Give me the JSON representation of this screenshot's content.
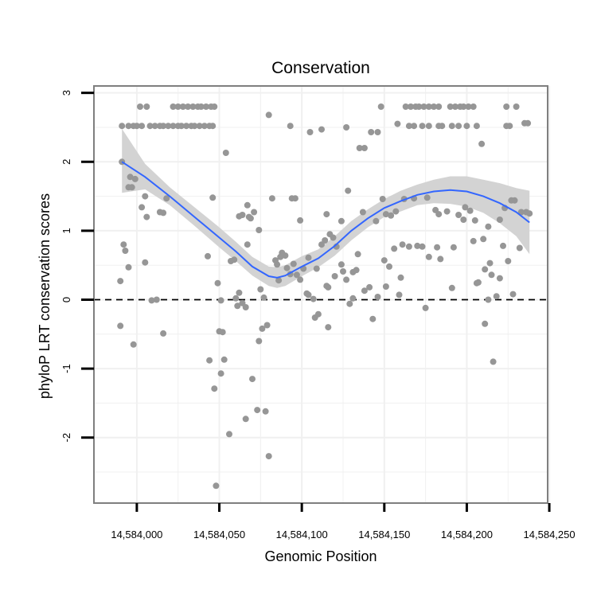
{
  "chart_data": {
    "type": "scatter",
    "title": "Conservation",
    "xlabel": "Genomic Position",
    "ylabel": "phyloP LRT conservation scores",
    "xlim": [
      14583974,
      14584249
    ],
    "ylim": [
      -2.95,
      3.1
    ],
    "x_ticks": [
      14584000,
      14584050,
      14584100,
      14584150,
      14584200,
      14584250
    ],
    "x_tick_labels": [
      "14,584,000",
      "14,584,050",
      "14,584,100",
      "14,584,150",
      "14,584,200",
      "14,584,250"
    ],
    "y_ticks": [
      -2,
      -1,
      0,
      1,
      2,
      3
    ],
    "y_tick_labels": [
      "-2",
      "-1",
      "0",
      "1",
      "2",
      "3"
    ],
    "reference_line": {
      "y": 0,
      "style": "dashed"
    },
    "grid": true,
    "colors": {
      "points": "#969696",
      "smooth": "#3366ff",
      "ribbon": "#d3d3d3",
      "grid": "#f0f0f0",
      "frame": "#7f7f7f",
      "ref": "#000000"
    },
    "points": [
      [
        14583991,
        2.52
      ],
      [
        14583995,
        2.52
      ],
      [
        14583998,
        2.52
      ],
      [
        14584000,
        2.52
      ],
      [
        14584003,
        2.52
      ],
      [
        14584008,
        2.52
      ],
      [
        14584011,
        2.52
      ],
      [
        14584014,
        2.52
      ],
      [
        14584016,
        2.52
      ],
      [
        14584019,
        2.52
      ],
      [
        14584022,
        2.52
      ],
      [
        14584025,
        2.52
      ],
      [
        14584027,
        2.52
      ],
      [
        14584030,
        2.52
      ],
      [
        14584033,
        2.52
      ],
      [
        14584035,
        2.52
      ],
      [
        14584038,
        2.52
      ],
      [
        14584041,
        2.52
      ],
      [
        14584044,
        2.52
      ],
      [
        14584046,
        2.52
      ],
      [
        14584002,
        2.8
      ],
      [
        14584006,
        2.8
      ],
      [
        14584022,
        2.8
      ],
      [
        14584025,
        2.8
      ],
      [
        14584028,
        2.8
      ],
      [
        14584031,
        2.8
      ],
      [
        14584034,
        2.8
      ],
      [
        14584037,
        2.8
      ],
      [
        14584039,
        2.8
      ],
      [
        14584042,
        2.8
      ],
      [
        14584045,
        2.8
      ],
      [
        14584047,
        2.8
      ],
      [
        14584135,
        2.2
      ],
      [
        14584138,
        2.2
      ],
      [
        14584142,
        2.43
      ],
      [
        14584146,
        2.43
      ],
      [
        14584148,
        2.8
      ],
      [
        14584158,
        2.55
      ],
      [
        14584163,
        2.8
      ],
      [
        14584166,
        2.8
      ],
      [
        14584169,
        2.8
      ],
      [
        14584171,
        2.8
      ],
      [
        14584174,
        2.8
      ],
      [
        14584177,
        2.8
      ],
      [
        14584180,
        2.8
      ],
      [
        14584183,
        2.8
      ],
      [
        14584190,
        2.8
      ],
      [
        14584193,
        2.8
      ],
      [
        14584196,
        2.8
      ],
      [
        14584198,
        2.8
      ],
      [
        14584201,
        2.8
      ],
      [
        14584204,
        2.8
      ],
      [
        14584165,
        2.52
      ],
      [
        14584168,
        2.52
      ],
      [
        14584173,
        2.52
      ],
      [
        14584177,
        2.52
      ],
      [
        14584183,
        2.52
      ],
      [
        14584185,
        2.52
      ],
      [
        14584191,
        2.52
      ],
      [
        14584195,
        2.52
      ],
      [
        14584200,
        2.52
      ],
      [
        14584206,
        2.52
      ],
      [
        14584224,
        2.52
      ],
      [
        14584226,
        2.52
      ],
      [
        14584235,
        2.56
      ],
      [
        14584237,
        2.56
      ],
      [
        14584224,
        2.8
      ],
      [
        14584230,
        2.8
      ],
      [
        14584209,
        2.26
      ],
      [
        14584080,
        2.68
      ],
      [
        14584093,
        2.52
      ],
      [
        14584105,
        2.43
      ],
      [
        14584112,
        2.47
      ],
      [
        14584127,
        2.5
      ],
      [
        14584054,
        2.13
      ],
      [
        14583991,
        2.0
      ],
      [
        14583995,
        1.63
      ],
      [
        14583997,
        1.63
      ],
      [
        14583996,
        1.78
      ],
      [
        14583999,
        1.75
      ],
      [
        14584003,
        1.34
      ],
      [
        14584005,
        1.5
      ],
      [
        14584006,
        1.2
      ],
      [
        14584018,
        1.47
      ],
      [
        14584014,
        1.27
      ],
      [
        14584016,
        1.26
      ],
      [
        14584046,
        1.48
      ],
      [
        14584062,
        1.21
      ],
      [
        14584064,
        1.23
      ],
      [
        14584067,
        1.37
      ],
      [
        14584068,
        1.2
      ],
      [
        14584071,
        1.27
      ],
      [
        14584082,
        1.47
      ],
      [
        14584094,
        1.47
      ],
      [
        14584096,
        1.47
      ],
      [
        14584099,
        1.15
      ],
      [
        14584115,
        1.24
      ],
      [
        14584124,
        1.14
      ],
      [
        14584128,
        1.58
      ],
      [
        14584137,
        1.27
      ],
      [
        14584145,
        1.14
      ],
      [
        14584149,
        1.46
      ],
      [
        14584151,
        1.24
      ],
      [
        14584154,
        1.22
      ],
      [
        14584157,
        1.28
      ],
      [
        14584162,
        1.46
      ],
      [
        14584168,
        1.47
      ],
      [
        14584176,
        1.48
      ],
      [
        14584181,
        1.3
      ],
      [
        14584183,
        1.24
      ],
      [
        14584188,
        1.28
      ],
      [
        14584195,
        1.23
      ],
      [
        14584199,
        1.34
      ],
      [
        14584202,
        1.29
      ],
      [
        14584205,
        1.15
      ],
      [
        14584213,
        1.06
      ],
      [
        14584220,
        1.16
      ],
      [
        14584223,
        1.33
      ],
      [
        14584227,
        1.44
      ],
      [
        14584229,
        1.44
      ],
      [
        14584233,
        1.27
      ],
      [
        14584236,
        1.27
      ],
      [
        14584238,
        1.25
      ],
      [
        14584232,
        0.75
      ],
      [
        14583992,
        0.8
      ],
      [
        14583993,
        0.71
      ],
      [
        14583995,
        0.47
      ],
      [
        14583990,
        0.27
      ],
      [
        14584005,
        0.54
      ],
      [
        14583990,
        -0.38
      ],
      [
        14583998,
        -0.65
      ],
      [
        14584009,
        -0.01
      ],
      [
        14584012,
        0.0
      ],
      [
        14584016,
        -0.49
      ],
      [
        14584043,
        0.63
      ],
      [
        14584049,
        0.24
      ],
      [
        14584051,
        -0.01
      ],
      [
        14584050,
        -0.46
      ],
      [
        14584052,
        -0.47
      ],
      [
        14584044,
        -0.88
      ],
      [
        14584047,
        -1.29
      ],
      [
        14584051,
        -1.07
      ],
      [
        14584053,
        -0.87
      ],
      [
        14584048,
        -2.7
      ],
      [
        14584056,
        -1.95
      ],
      [
        14584057,
        0.56
      ],
      [
        14584059,
        0.58
      ],
      [
        14584060,
        0.02
      ],
      [
        14584061,
        -0.09
      ],
      [
        14584062,
        0.1
      ],
      [
        14584064,
        -0.05
      ],
      [
        14584066,
        -0.11
      ],
      [
        14584067,
        0.8
      ],
      [
        14584069,
        1.18
      ],
      [
        14584070,
        -1.15
      ],
      [
        14584073,
        -1.6
      ],
      [
        14584075,
        0.15
      ],
      [
        14584076,
        -0.42
      ],
      [
        14584077,
        0.03
      ],
      [
        14584079,
        -0.37
      ],
      [
        14584078,
        -1.62
      ],
      [
        14584080,
        -2.27
      ],
      [
        14584066,
        -1.73
      ],
      [
        14584074,
        -0.6
      ],
      [
        14584074,
        1.01
      ],
      [
        14584084,
        0.57
      ],
      [
        14584085,
        0.51
      ],
      [
        14584086,
        0.28
      ],
      [
        14584088,
        0.68
      ],
      [
        14584090,
        0.64
      ],
      [
        14584091,
        0.46
      ],
      [
        14584093,
        0.37
      ],
      [
        14584095,
        0.52
      ],
      [
        14584099,
        0.29
      ],
      [
        14584101,
        0.45
      ],
      [
        14584103,
        0.09
      ],
      [
        14584104,
        0.07
      ],
      [
        14584107,
        0.01
      ],
      [
        14584108,
        -0.26
      ],
      [
        14584110,
        -0.21
      ],
      [
        14584112,
        0.8
      ],
      [
        14584114,
        0.86
      ],
      [
        14584115,
        0.2
      ],
      [
        14584116,
        0.18
      ],
      [
        14584117,
        0.95
      ],
      [
        14584119,
        0.9
      ],
      [
        14584120,
        0.34
      ],
      [
        14584124,
        0.51
      ],
      [
        14584125,
        0.41
      ],
      [
        14584127,
        0.29
      ],
      [
        14584129,
        -0.06
      ],
      [
        14584131,
        0.4
      ],
      [
        14584131,
        0.02
      ],
      [
        14584133,
        0.43
      ],
      [
        14584138,
        0.13
      ],
      [
        14584141,
        0.18
      ],
      [
        14584143,
        -0.28
      ],
      [
        14584146,
        0.04
      ],
      [
        14584150,
        0.57
      ],
      [
        14584151,
        0.19
      ],
      [
        14584153,
        0.48
      ],
      [
        14584156,
        0.74
      ],
      [
        14584159,
        0.07
      ],
      [
        14584160,
        0.32
      ],
      [
        14584161,
        0.8
      ],
      [
        14584165,
        0.77
      ],
      [
        14584170,
        0.78
      ],
      [
        14584173,
        0.77
      ],
      [
        14584175,
        -0.12
      ],
      [
        14584177,
        0.62
      ],
      [
        14584182,
        0.76
      ],
      [
        14584184,
        0.59
      ],
      [
        14584191,
        0.17
      ],
      [
        14584192,
        0.76
      ],
      [
        14584198,
        1.16
      ],
      [
        14584204,
        0.85
      ],
      [
        14584206,
        0.24
      ],
      [
        14584207,
        0.25
      ],
      [
        14584210,
        0.88
      ],
      [
        14584211,
        0.44
      ],
      [
        14584211,
        -0.35
      ],
      [
        14584213,
        0.0
      ],
      [
        14584214,
        0.53
      ],
      [
        14584215,
        0.36
      ],
      [
        14584216,
        -0.9
      ],
      [
        14584218,
        0.05
      ],
      [
        14584220,
        0.31
      ],
      [
        14584222,
        0.78
      ],
      [
        14584225,
        0.56
      ],
      [
        14584228,
        0.08
      ],
      [
        14584087,
        0.62
      ],
      [
        14584097,
        0.36
      ],
      [
        14584104,
        0.61
      ],
      [
        14584109,
        0.45
      ],
      [
        14584121,
        0.77
      ],
      [
        14584134,
        0.66
      ],
      [
        14584116,
        -0.4
      ]
    ],
    "smooth": {
      "x": [
        14583991,
        14584005,
        14584020,
        14584035,
        14584050,
        14584060,
        14584070,
        14584080,
        14584085,
        14584090,
        14584100,
        14584110,
        14584120,
        14584130,
        14584140,
        14584150,
        14584160,
        14584170,
        14584180,
        14584190,
        14584200,
        14584210,
        14584220,
        14584230,
        14584238
      ],
      "y": [
        2.0,
        1.78,
        1.5,
        1.2,
        0.9,
        0.7,
        0.48,
        0.34,
        0.32,
        0.35,
        0.48,
        0.6,
        0.78,
        1.0,
        1.18,
        1.33,
        1.43,
        1.52,
        1.57,
        1.59,
        1.57,
        1.5,
        1.4,
        1.27,
        1.12
      ],
      "lower": [
        1.55,
        1.6,
        1.37,
        1.07,
        0.76,
        0.56,
        0.35,
        0.2,
        0.17,
        0.2,
        0.34,
        0.47,
        0.64,
        0.86,
        1.05,
        1.2,
        1.28,
        1.37,
        1.4,
        1.39,
        1.35,
        1.26,
        1.11,
        0.92,
        0.66
      ],
      "upper": [
        2.48,
        1.97,
        1.63,
        1.34,
        1.05,
        0.84,
        0.62,
        0.48,
        0.47,
        0.5,
        0.63,
        0.73,
        0.92,
        1.14,
        1.31,
        1.46,
        1.58,
        1.67,
        1.74,
        1.79,
        1.79,
        1.74,
        1.69,
        1.62,
        1.58
      ]
    }
  }
}
